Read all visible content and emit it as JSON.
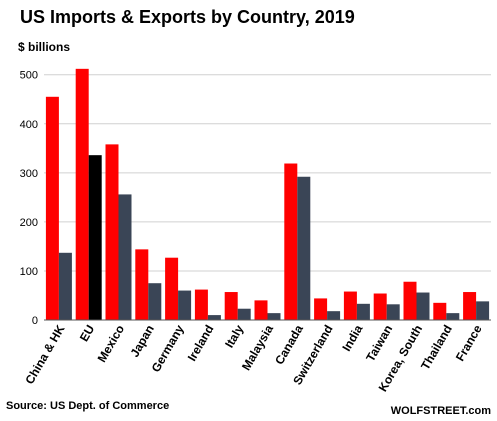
{
  "chart_data": {
    "type": "bar",
    "title": "US Imports & Exports by Country, 2019",
    "ylabel": "$ billions",
    "ylim": [
      0,
      530
    ],
    "yticks": [
      0,
      100,
      200,
      300,
      400,
      500
    ],
    "grid": true,
    "legend": "none",
    "categories": [
      "China & HK",
      "EU",
      "Mexico",
      "Japan",
      "Germany",
      "Ireland",
      "Italy",
      "Malaysia",
      "Canada",
      "Switzerland",
      "India",
      "Taiwan",
      "Korea, South",
      "Thailand",
      "France"
    ],
    "series": [
      {
        "values": [
          455,
          512,
          358,
          144,
          127,
          62,
          57,
          40,
          319,
          44,
          58,
          54,
          78,
          35,
          57
        ],
        "colors": [
          "#ff0000",
          "#ff0000",
          "#ff0000",
          "#ff0000",
          "#ff0000",
          "#ff0000",
          "#ff0000",
          "#ff0000",
          "#ff0000",
          "#ff0000",
          "#ff0000",
          "#ff0000",
          "#ff0000",
          "#ff0000",
          "#ff0000"
        ]
      },
      {
        "values": [
          137,
          336,
          256,
          75,
          60,
          10,
          23,
          14,
          292,
          18,
          33,
          32,
          56,
          14,
          38
        ],
        "colors": [
          "#3a4556",
          "#000000",
          "#3a4556",
          "#3a4556",
          "#3a4556",
          "#3a4556",
          "#3a4556",
          "#3a4556",
          "#3a4556",
          "#3a4556",
          "#3a4556",
          "#3a4556",
          "#3a4556",
          "#3a4556",
          "#3a4556"
        ]
      }
    ],
    "source": "Source: US Dept. of Commerce",
    "brand": "WOLFSTREET.com",
    "colors": {
      "grid": "#d0d0d0",
      "axis": "#555555"
    }
  }
}
